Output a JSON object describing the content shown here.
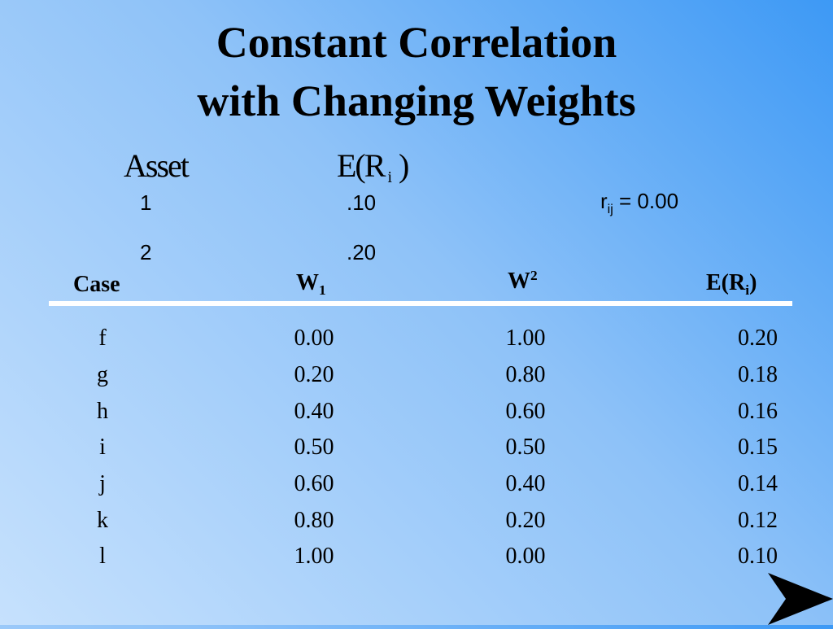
{
  "title": {
    "line1": "Constant Correlation",
    "line2": "with Changing Weights"
  },
  "assets": {
    "header_asset": "Asset",
    "header_er_prefix": "E(R",
    "header_er_sub": "i",
    "header_er_suffix": ")",
    "rows": [
      {
        "asset": "1",
        "er": ".10"
      },
      {
        "asset": "2",
        "er": ".20"
      }
    ],
    "correlation": {
      "symbol": "r",
      "sub": "ij",
      "text": "= 0.00"
    }
  },
  "table": {
    "headers": {
      "case": "Case",
      "w1_base": "W",
      "w1_sub": "1",
      "w2_base": "W",
      "w2_sup": "2",
      "er_prefix": "E(R",
      "er_sub": "i",
      "er_suffix": ")"
    },
    "rows": [
      {
        "case": "f",
        "w1": "0.00",
        "w2": "1.00",
        "er": "0.20"
      },
      {
        "case": "g",
        "w1": "0.20",
        "w2": "0.80",
        "er": "0.18"
      },
      {
        "case": "h",
        "w1": "0.40",
        "w2": "0.60",
        "er": "0.16"
      },
      {
        "case": "i",
        "w1": "0.50",
        "w2": "0.50",
        "er": "0.15"
      },
      {
        "case": "j",
        "w1": "0.60",
        "w2": "0.40",
        "er": "0.14"
      },
      {
        "case": "k",
        "w1": "0.80",
        "w2": "0.20",
        "er": "0.12"
      },
      {
        "case": "l",
        "w1": "1.00",
        "w2": "0.00",
        "er": "0.10"
      }
    ]
  },
  "nav": {
    "next_icon": "arrow-right-icon"
  }
}
